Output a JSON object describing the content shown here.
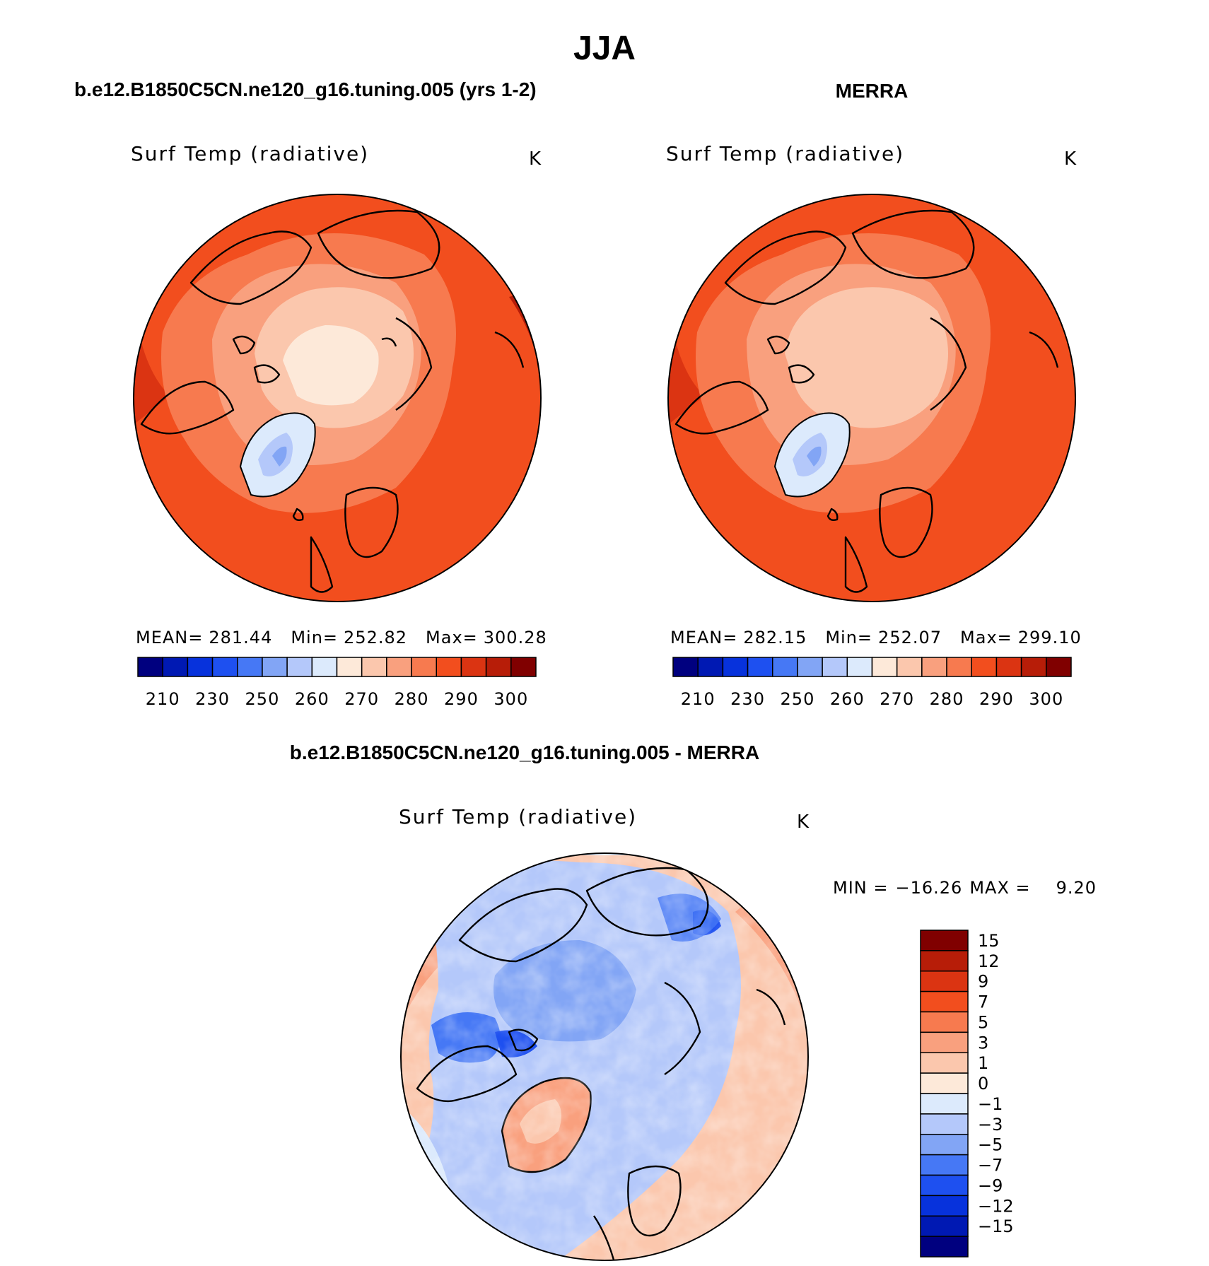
{
  "season": "JJA",
  "panels": [
    {
      "case_title": "b.e12.B1850C5CN.ne120_g16.tuning.005 (yrs 1-2)",
      "variable": "Surf Temp (radiative)",
      "units": "K",
      "stats": {
        "mean_label": "MEAN=",
        "mean": "281.44",
        "min_label": "Min=",
        "min": "252.82",
        "max_label": "Max=",
        "max": "300.28"
      }
    },
    {
      "case_title": "MERRA",
      "variable": "Surf Temp (radiative)",
      "units": "K",
      "stats": {
        "mean_label": "MEAN=",
        "mean": "282.15",
        "min_label": "Min=",
        "min": "252.07",
        "max_label": "Max=",
        "max": "299.10"
      }
    }
  ],
  "abs_colorbar": {
    "colors": [
      "#00007f",
      "#0019b3",
      "#0732dc",
      "#1e50f0",
      "#4678f5",
      "#82a5f5",
      "#b4c8fa",
      "#dceafc",
      "#fde9d9",
      "#fbc7ad",
      "#f9a07e",
      "#f77a4f",
      "#f24e1e",
      "#db3412",
      "#b71d08",
      "#800000"
    ],
    "labels": [
      "210",
      "230",
      "250",
      "260",
      "270",
      "280",
      "290",
      "300"
    ]
  },
  "difference": {
    "title": "b.e12.B1850C5CN.ne120_g16.tuning.005 - MERRA",
    "variable": "Surf Temp (radiative)",
    "units": "K",
    "min_label": "MIN =",
    "min": "−16.26",
    "max_label": "MAX =",
    "max": "9.20",
    "colorbar": {
      "colors": [
        "#800000",
        "#b71d08",
        "#db3412",
        "#f24e1e",
        "#f77a4f",
        "#f9a07e",
        "#fbc7ad",
        "#fde9d9",
        "#dceafc",
        "#b4c8fa",
        "#82a5f5",
        "#4678f5",
        "#1e50f0",
        "#0732dc",
        "#0019b3",
        "#00007f"
      ],
      "labels": [
        "15",
        "12",
        "9",
        "7",
        "5",
        "3",
        "1",
        "0",
        "−1",
        "−3",
        "−5",
        "−7",
        "−9",
        "−12",
        "−15"
      ]
    }
  }
}
